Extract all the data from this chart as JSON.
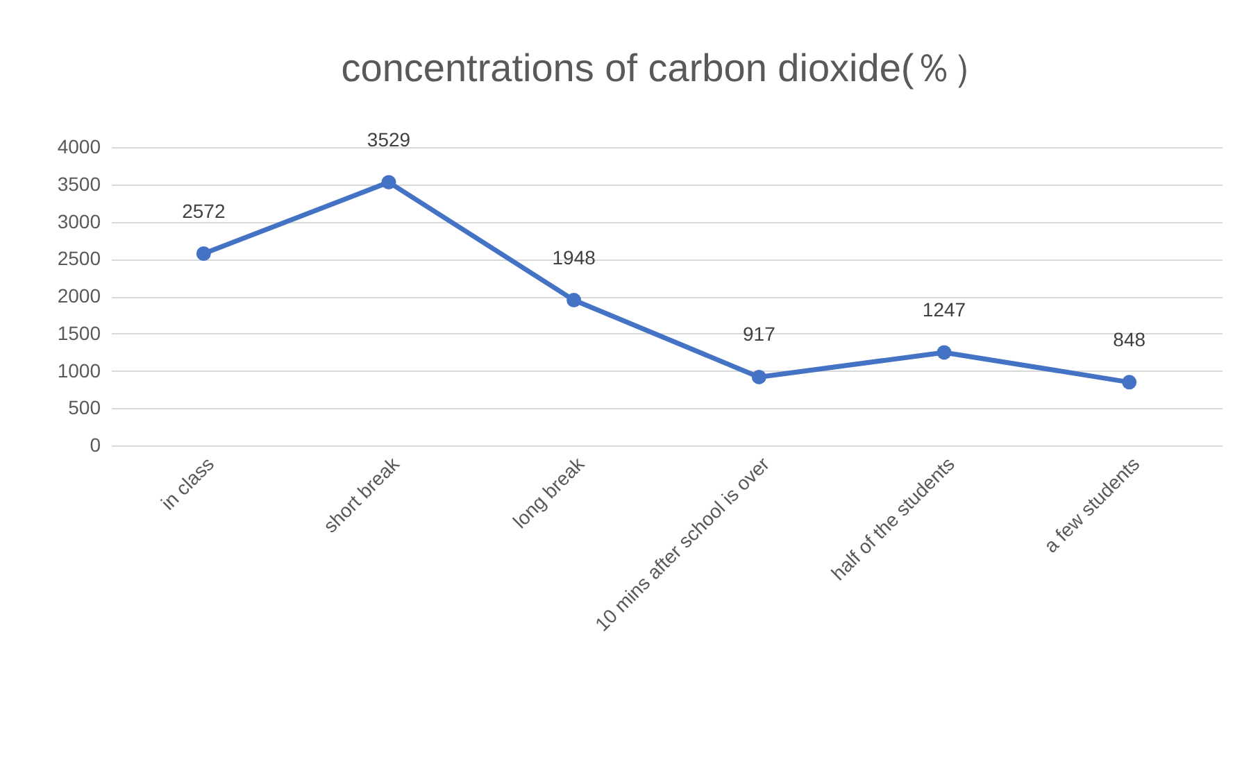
{
  "chart_data": {
    "type": "line",
    "title": "concentrations of carbon dioxide(％）",
    "categories": [
      "in class",
      "short break",
      "long break",
      "10 mins after school is over",
      "half of the students",
      "a few students"
    ],
    "series": [
      {
        "color": "#4472c4",
        "values": [
          2572,
          3529,
          1948,
          917,
          1247,
          848
        ]
      }
    ],
    "ylim": [
      0,
      4000
    ],
    "yticks": [
      0,
      500,
      1000,
      1500,
      2000,
      2500,
      3000,
      3500,
      4000
    ],
    "grid": "y",
    "marker": "circle",
    "line_style": "solid",
    "data_labels": true
  }
}
